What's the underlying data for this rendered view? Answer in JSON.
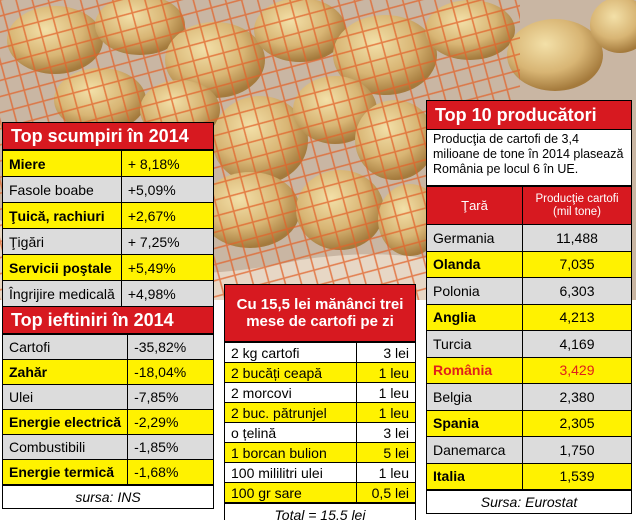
{
  "colors": {
    "red": "#d71920",
    "yellow": "#fff200",
    "gray": "#dcdcdc",
    "romania_red": "#e0201b"
  },
  "top_scumpiri": {
    "title": "Top scumpiri în 2014",
    "rows": [
      {
        "item": "Miere",
        "value": "+ 8,18%"
      },
      {
        "item": "Fasole boabe",
        "value": "+5,09%"
      },
      {
        "item": "Ţuică, rachiuri",
        "value": "+2,67%"
      },
      {
        "item": "Ţigări",
        "value": "+ 7,25%"
      },
      {
        "item": "Servicii poştale",
        "value": "+5,49%"
      },
      {
        "item": "Îngrijire medicală",
        "value": "+4,98%"
      }
    ]
  },
  "top_ieftiniri": {
    "title": "Top ieftiniri în 2014",
    "rows": [
      {
        "item": "Cartofi",
        "value": "-35,82%"
      },
      {
        "item": "Zahăr",
        "value": "-18,04%"
      },
      {
        "item": "Ulei",
        "value": "-7,85%"
      },
      {
        "item": "Energie electrică",
        "value": "-2,29%"
      },
      {
        "item": "Combustibili",
        "value": "-1,85%"
      },
      {
        "item": "Energie termică",
        "value": "-1,68%"
      }
    ],
    "source": "sursa: INS"
  },
  "cartofi": {
    "title": "Cu 15,5 lei mănânci trei mese de cartofi pe zi",
    "rows": [
      {
        "item": "2 kg cartofi",
        "price": "3 lei"
      },
      {
        "item": "2 bucăți ceapă",
        "price": "1 leu"
      },
      {
        "item": "2 morcovi",
        "price": "1 leu"
      },
      {
        "item": "2 buc. pătrunjel",
        "price": "1 leu"
      },
      {
        "item": "o țelină",
        "price": "3 lei"
      },
      {
        "item": "1 borcan bulion",
        "price": "5 lei"
      },
      {
        "item": "100 mililitri ulei",
        "price": "1 leu"
      },
      {
        "item": "100 gr sare",
        "price": "0,5 lei"
      }
    ],
    "total": "Total = 15,5 lei"
  },
  "producatori": {
    "title": "Top 10 producători",
    "description": "Producţia de cartofi de 3,4 milioane de tone în 2014 plasează România pe locul 6 în UE.",
    "col_country": "Ţară",
    "col_production": "Producţie cartofi (mil tone)",
    "rows": [
      {
        "country": "Germania",
        "value": "11,488"
      },
      {
        "country": "Olanda",
        "value": "7,035"
      },
      {
        "country": "Polonia",
        "value": "6,303"
      },
      {
        "country": "Anglia",
        "value": "4,213"
      },
      {
        "country": "Turcia",
        "value": "4,169"
      },
      {
        "country": "România",
        "value": "3,429"
      },
      {
        "country": "Belgia",
        "value": "2,380"
      },
      {
        "country": "Spania",
        "value": "2,305"
      },
      {
        "country": "Danemarca",
        "value": "1,750"
      },
      {
        "country": "Italia",
        "value": "1,539"
      }
    ],
    "source": "Sursa: Eurostat"
  }
}
